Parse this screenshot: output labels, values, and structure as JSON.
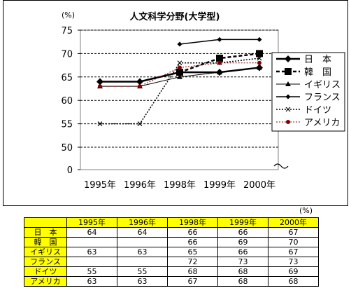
{
  "chart_data": {
    "type": "line",
    "title": "人文科学分野(大学型)",
    "unit_label": "(%)",
    "categories": [
      "1995年",
      "1996年",
      "1998年",
      "1999年",
      "2000年"
    ],
    "y_ticks": [
      "75",
      "70",
      "65",
      "60",
      "55",
      "50",
      "0"
    ],
    "series": [
      {
        "name": "日　本",
        "values": [
          64,
          64,
          66,
          66,
          67
        ],
        "color": "#000000",
        "marker": "diamond",
        "dash": "solid",
        "width": 2.5
      },
      {
        "name": "韓　国",
        "values": [
          null,
          null,
          66,
          69,
          70
        ],
        "color": "#000000",
        "marker": "square",
        "dash": "dashed",
        "width": 2.5
      },
      {
        "name": "イギリス",
        "values": [
          63,
          63,
          65,
          66,
          67
        ],
        "color": "#000000",
        "marker": "triangle",
        "dash": "solid",
        "width": 1
      },
      {
        "name": "フランス",
        "values": [
          null,
          null,
          72,
          73,
          73
        ],
        "color": "#000000",
        "marker": "diamond-small",
        "dash": "solid",
        "width": 1.5
      },
      {
        "name": "ドイツ",
        "values": [
          55,
          55,
          68,
          68,
          69
        ],
        "color": "#000000",
        "marker": "x",
        "dash": "dotted",
        "width": 1.5
      },
      {
        "name": "アメリカ",
        "values": [
          63,
          63,
          67,
          68,
          68
        ],
        "color": "#800000",
        "marker": "circle",
        "dash": "dotted",
        "width": 1
      }
    ]
  },
  "table": {
    "unit_label": "(%)",
    "headers": [
      "1995年",
      "1996年",
      "1998年",
      "1999年",
      "2000年"
    ],
    "rows": [
      {
        "label": "日　本",
        "values": [
          "64",
          "64",
          "66",
          "66",
          "67"
        ]
      },
      {
        "label": "韓　国",
        "values": [
          "",
          "",
          "66",
          "69",
          "70"
        ]
      },
      {
        "label": "イギリス",
        "values": [
          "63",
          "63",
          "65",
          "66",
          "67"
        ]
      },
      {
        "label": "フランス",
        "values": [
          "",
          "",
          "72",
          "73",
          "73"
        ]
      },
      {
        "label": "ドイツ",
        "values": [
          "55",
          "55",
          "68",
          "68",
          "69"
        ]
      },
      {
        "label": "アメリカ",
        "values": [
          "63",
          "63",
          "67",
          "68",
          "68"
        ]
      }
    ]
  }
}
